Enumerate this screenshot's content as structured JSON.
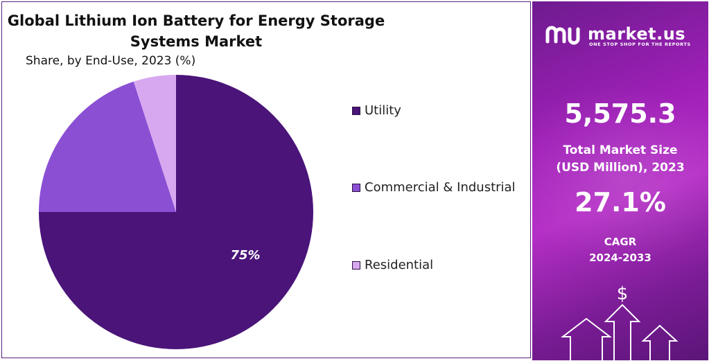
{
  "header": {
    "title_line1": "Global Lithium Ion Battery for Energy Storage",
    "title_line2": "Systems Market",
    "subtitle": "Share, by End-Use, 2023 (%)"
  },
  "chart_data": {
    "type": "pie",
    "title": "Global Lithium Ion Battery for Energy Storage Systems Market",
    "subtitle": "Share, by End-Use, 2023 (%)",
    "slices": [
      {
        "name": "Utility",
        "value": 75,
        "label": "75%",
        "color": "#4a1479"
      },
      {
        "name": "Commercial & Industrial",
        "value": 20,
        "label": "",
        "color": "#8b4fd4"
      },
      {
        "name": "Residential",
        "value": 5,
        "label": "",
        "color": "#d7a8f0"
      }
    ],
    "legend_position": "right"
  },
  "sidebar": {
    "brand_name": "market.us",
    "brand_tagline": "ONE STOP SHOP FOR THE REPORTS",
    "market_size_value": "5,575.3",
    "market_size_label_line1": "Total Market Size",
    "market_size_label_line2": "(USD Million), 2023",
    "cagr_value": "27.1%",
    "cagr_label_line1": "CAGR",
    "cagr_label_line2": "2024-2033",
    "dollar_symbol": "$",
    "icons": [
      "market-us-logo-icon",
      "dollar-icon",
      "up-arrow-icon"
    ]
  }
}
